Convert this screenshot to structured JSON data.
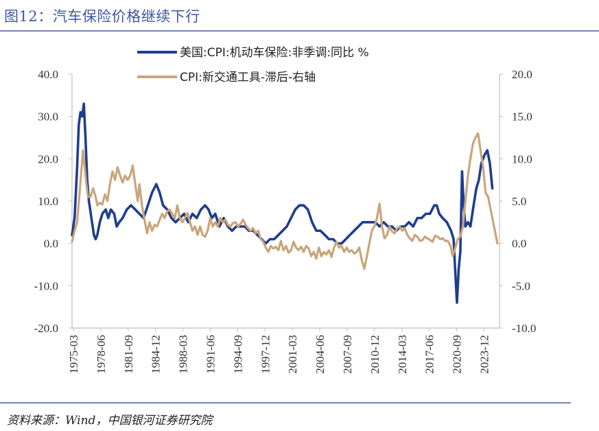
{
  "figure": {
    "title": "图12：汽车保险价格继续下行",
    "source": "资料来源：Wind，中国银河证券研究院"
  },
  "colors": {
    "series1": "#1f3d8f",
    "series2": "#c9a57a",
    "axis": "#bfbfbf"
  },
  "chart_data": {
    "type": "line",
    "title": "",
    "legend_position": "top-center",
    "x_tick_labels": [
      "1975-03",
      "1978-06",
      "1981-09",
      "1984-12",
      "1988-03",
      "1991-06",
      "1994-09",
      "1997-12",
      "2001-03",
      "2004-06",
      "2007-09",
      "2010-12",
      "2014-03",
      "2017-06",
      "2020-09",
      "2023-12"
    ],
    "x_range": [
      1975.0,
      2025.75
    ],
    "y_left": {
      "range": [
        -20,
        40
      ],
      "ticks": [
        "-20.0",
        "-10.0",
        "0.0",
        "10.0",
        "20.0",
        "30.0",
        "40.0"
      ]
    },
    "y_right": {
      "range": [
        -10,
        20
      ],
      "ticks": [
        "-10.0",
        "-5.0",
        "0.0",
        "5.0",
        "10.0",
        "15.0",
        "20.0"
      ]
    },
    "series": [
      {
        "name": "美国:CPI:机动车保险:非季调:同比 %",
        "axis": "left",
        "points": [
          [
            1975.0,
            2
          ],
          [
            1975.3,
            6
          ],
          [
            1975.6,
            18
          ],
          [
            1975.8,
            28
          ],
          [
            1976.0,
            31
          ],
          [
            1976.2,
            30
          ],
          [
            1976.4,
            33
          ],
          [
            1976.6,
            25
          ],
          [
            1976.8,
            15
          ],
          [
            1977.0,
            10
          ],
          [
            1977.3,
            6
          ],
          [
            1977.6,
            2
          ],
          [
            1977.8,
            1
          ],
          [
            1978.0,
            2
          ],
          [
            1978.3,
            5
          ],
          [
            1978.6,
            7
          ],
          [
            1979.0,
            8
          ],
          [
            1979.3,
            6
          ],
          [
            1979.6,
            8
          ],
          [
            1980.0,
            7
          ],
          [
            1980.3,
            4
          ],
          [
            1980.6,
            5
          ],
          [
            1981.0,
            6
          ],
          [
            1981.5,
            8
          ],
          [
            1982.0,
            9
          ],
          [
            1982.5,
            8
          ],
          [
            1983.0,
            7
          ],
          [
            1983.5,
            6
          ],
          [
            1984.0,
            9
          ],
          [
            1984.5,
            12
          ],
          [
            1985.0,
            14
          ],
          [
            1985.4,
            12
          ],
          [
            1985.8,
            9
          ],
          [
            1986.3,
            8
          ],
          [
            1986.8,
            6
          ],
          [
            1987.3,
            5
          ],
          [
            1987.8,
            6
          ],
          [
            1988.3,
            7
          ],
          [
            1988.8,
            5
          ],
          [
            1989.3,
            7
          ],
          [
            1989.8,
            6
          ],
          [
            1990.3,
            8
          ],
          [
            1990.8,
            9
          ],
          [
            1991.2,
            8
          ],
          [
            1991.6,
            6
          ],
          [
            1992.0,
            7
          ],
          [
            1992.5,
            4
          ],
          [
            1993.0,
            6
          ],
          [
            1993.5,
            4
          ],
          [
            1994.0,
            3
          ],
          [
            1994.5,
            4
          ],
          [
            1995.0,
            4
          ],
          [
            1995.5,
            4
          ],
          [
            1996.0,
            3
          ],
          [
            1996.5,
            3
          ],
          [
            1997.0,
            2
          ],
          [
            1997.5,
            1
          ],
          [
            1998.0,
            0
          ],
          [
            1998.5,
            1
          ],
          [
            1999.0,
            1
          ],
          [
            1999.5,
            2
          ],
          [
            2000.0,
            3
          ],
          [
            2000.5,
            4
          ],
          [
            2001.0,
            6
          ],
          [
            2001.5,
            8
          ],
          [
            2002.0,
            9
          ],
          [
            2002.5,
            9
          ],
          [
            2003.0,
            8
          ],
          [
            2003.5,
            5
          ],
          [
            2004.0,
            3
          ],
          [
            2004.5,
            3
          ],
          [
            2005.0,
            2
          ],
          [
            2005.5,
            1
          ],
          [
            2006.0,
            1
          ],
          [
            2006.5,
            0
          ],
          [
            2007.0,
            0
          ],
          [
            2007.5,
            1
          ],
          [
            2008.0,
            2
          ],
          [
            2008.5,
            3
          ],
          [
            2009.0,
            4
          ],
          [
            2009.5,
            5
          ],
          [
            2010.0,
            5
          ],
          [
            2010.5,
            5
          ],
          [
            2011.0,
            5
          ],
          [
            2011.5,
            4
          ],
          [
            2012.0,
            5
          ],
          [
            2012.5,
            4
          ],
          [
            2013.0,
            4
          ],
          [
            2013.5,
            3
          ],
          [
            2014.0,
            4
          ],
          [
            2014.5,
            4
          ],
          [
            2015.0,
            5
          ],
          [
            2015.5,
            4
          ],
          [
            2016.0,
            6
          ],
          [
            2016.5,
            6
          ],
          [
            2017.0,
            7
          ],
          [
            2017.5,
            7
          ],
          [
            2018.0,
            9
          ],
          [
            2018.3,
            9
          ],
          [
            2018.6,
            7
          ],
          [
            2019.0,
            6
          ],
          [
            2019.5,
            5
          ],
          [
            2020.0,
            3
          ],
          [
            2020.3,
            1
          ],
          [
            2020.5,
            -7
          ],
          [
            2020.7,
            -14
          ],
          [
            2020.9,
            -6
          ],
          [
            2021.1,
            -2
          ],
          [
            2021.3,
            17
          ],
          [
            2021.5,
            9
          ],
          [
            2021.7,
            4
          ],
          [
            2022.0,
            5
          ],
          [
            2022.3,
            4
          ],
          [
            2022.6,
            8
          ],
          [
            2023.0,
            13
          ],
          [
            2023.3,
            15
          ],
          [
            2023.6,
            19
          ],
          [
            2024.0,
            21
          ],
          [
            2024.3,
            22
          ],
          [
            2024.6,
            19
          ],
          [
            2024.9,
            13
          ]
        ]
      },
      {
        "name": "CPI:新交通工具-滞后-右轴",
        "axis": "right",
        "points": [
          [
            1975.0,
            0.2
          ],
          [
            1975.3,
            1.5
          ],
          [
            1975.6,
            2.5
          ],
          [
            1975.9,
            6
          ],
          [
            1976.1,
            8.5
          ],
          [
            1976.3,
            11
          ],
          [
            1976.5,
            9
          ],
          [
            1976.7,
            7
          ],
          [
            1976.9,
            5.5
          ],
          [
            1977.2,
            5.5
          ],
          [
            1977.5,
            6.5
          ],
          [
            1977.8,
            5.5
          ],
          [
            1978.0,
            4.5
          ],
          [
            1978.3,
            4.8
          ],
          [
            1978.6,
            4.6
          ],
          [
            1978.9,
            5.8
          ],
          [
            1979.2,
            5
          ],
          [
            1979.5,
            7
          ],
          [
            1979.8,
            8.5
          ],
          [
            1980.1,
            7.5
          ],
          [
            1980.4,
            9
          ],
          [
            1980.7,
            8
          ],
          [
            1981.0,
            7.2
          ],
          [
            1981.3,
            8
          ],
          [
            1981.6,
            7.5
          ],
          [
            1981.9,
            8
          ],
          [
            1982.2,
            9.2
          ],
          [
            1982.5,
            7
          ],
          [
            1982.8,
            5
          ],
          [
            1983.0,
            7
          ],
          [
            1983.3,
            4.5
          ],
          [
            1983.6,
            2.8
          ],
          [
            1983.9,
            1.2
          ],
          [
            1984.2,
            2.5
          ],
          [
            1984.5,
            1.5
          ],
          [
            1984.8,
            2.2
          ],
          [
            1985.1,
            2
          ],
          [
            1985.4,
            2.8
          ],
          [
            1985.7,
            3.5
          ],
          [
            1986.0,
            3
          ],
          [
            1986.3,
            3.8
          ],
          [
            1986.6,
            4
          ],
          [
            1986.9,
            3.5
          ],
          [
            1987.2,
            3
          ],
          [
            1987.5,
            4.5
          ],
          [
            1987.8,
            3
          ],
          [
            1988.1,
            2.5
          ],
          [
            1988.4,
            3
          ],
          [
            1988.7,
            3.6
          ],
          [
            1989.0,
            2.5
          ],
          [
            1989.3,
            1.5
          ],
          [
            1989.6,
            2
          ],
          [
            1989.9,
            1
          ],
          [
            1990.2,
            2
          ],
          [
            1990.5,
            1
          ],
          [
            1990.8,
            0.8
          ],
          [
            1991.1,
            1.5
          ],
          [
            1991.4,
            3
          ],
          [
            1991.7,
            2
          ],
          [
            1992.0,
            2.5
          ],
          [
            1992.3,
            2
          ],
          [
            1992.6,
            3
          ],
          [
            1992.9,
            2.5
          ],
          [
            1993.2,
            2.8
          ],
          [
            1993.5,
            2.2
          ],
          [
            1993.8,
            2
          ],
          [
            1994.1,
            2.4
          ],
          [
            1994.4,
            2.5
          ],
          [
            1994.7,
            2
          ],
          [
            1995.0,
            2.3
          ],
          [
            1995.3,
            2.8
          ],
          [
            1995.6,
            2.2
          ],
          [
            1995.9,
            1.8
          ],
          [
            1996.2,
            1.5
          ],
          [
            1996.5,
            1.8
          ],
          [
            1996.8,
            1.2
          ],
          [
            1997.1,
            1.5
          ],
          [
            1997.4,
            0.5
          ],
          [
            1997.7,
            0.2
          ],
          [
            1998.0,
            -0.5
          ],
          [
            1998.3,
            -1
          ],
          [
            1998.6,
            -0.3
          ],
          [
            1998.9,
            -0.6
          ],
          [
            1999.2,
            -0.4
          ],
          [
            1999.5,
            -0.8
          ],
          [
            1999.8,
            0.3
          ],
          [
            2000.1,
            -0.8
          ],
          [
            2000.4,
            -0.3
          ],
          [
            2000.7,
            -1.1
          ],
          [
            2001.0,
            -0.8
          ],
          [
            2001.3,
            0.2
          ],
          [
            2001.6,
            -0.5
          ],
          [
            2001.9,
            -0.8
          ],
          [
            2002.2,
            -0.4
          ],
          [
            2002.5,
            -1
          ],
          [
            2002.8,
            -0.3
          ],
          [
            2003.1,
            -0.6
          ],
          [
            2003.4,
            -1.5
          ],
          [
            2003.7,
            -1
          ],
          [
            2004.0,
            -1.8
          ],
          [
            2004.3,
            -0.5
          ],
          [
            2004.6,
            -1.5
          ],
          [
            2004.9,
            -1
          ],
          [
            2005.2,
            -1.3
          ],
          [
            2005.5,
            -0.8
          ],
          [
            2005.8,
            -1.6
          ],
          [
            2006.1,
            -0.5
          ],
          [
            2006.4,
            0.2
          ],
          [
            2006.7,
            -0.5
          ],
          [
            2007.0,
            -0.3
          ],
          [
            2007.3,
            -1
          ],
          [
            2007.6,
            -0.5
          ],
          [
            2007.9,
            -1
          ],
          [
            2008.2,
            -0.8
          ],
          [
            2008.5,
            -1.2
          ],
          [
            2008.8,
            -1
          ],
          [
            2009.1,
            -0.5
          ],
          [
            2009.4,
            -2
          ],
          [
            2009.7,
            -3
          ],
          [
            2010.0,
            -1.5
          ],
          [
            2010.3,
            0
          ],
          [
            2010.6,
            1.5
          ],
          [
            2010.9,
            2
          ],
          [
            2011.2,
            3
          ],
          [
            2011.5,
            4.7
          ],
          [
            2011.8,
            2
          ],
          [
            2012.1,
            0.6
          ],
          [
            2012.4,
            1
          ],
          [
            2012.7,
            2
          ],
          [
            2013.0,
            1.4
          ],
          [
            2013.3,
            1.2
          ],
          [
            2013.6,
            1.8
          ],
          [
            2013.9,
            2
          ],
          [
            2014.2,
            1.5
          ],
          [
            2014.5,
            1.8
          ],
          [
            2014.8,
            1
          ],
          [
            2015.1,
            0.6
          ],
          [
            2015.4,
            0.3
          ],
          [
            2015.7,
            1
          ],
          [
            2016.0,
            0.8
          ],
          [
            2016.3,
            0.3
          ],
          [
            2016.6,
            0.4
          ],
          [
            2016.9,
            0.8
          ],
          [
            2017.2,
            0.6
          ],
          [
            2017.5,
            0.4
          ],
          [
            2017.8,
            0.2
          ],
          [
            2018.1,
            0.9
          ],
          [
            2018.4,
            0.8
          ],
          [
            2018.7,
            0.5
          ],
          [
            2019.0,
            0.6
          ],
          [
            2019.3,
            0.3
          ],
          [
            2019.6,
            0.3
          ],
          [
            2019.9,
            -0.2
          ],
          [
            2020.2,
            -1.5
          ],
          [
            2020.5,
            -0.5
          ],
          [
            2020.8,
            0.5
          ],
          [
            2021.1,
            0.8
          ],
          [
            2021.4,
            2
          ],
          [
            2021.7,
            5
          ],
          [
            2022.0,
            8
          ],
          [
            2022.3,
            10
          ],
          [
            2022.6,
            11.8
          ],
          [
            2022.9,
            12.5
          ],
          [
            2023.2,
            13
          ],
          [
            2023.5,
            11
          ],
          [
            2023.8,
            9
          ],
          [
            2024.1,
            6
          ],
          [
            2024.4,
            5.5
          ],
          [
            2024.7,
            4
          ],
          [
            2025.0,
            2.5
          ],
          [
            2025.3,
            1
          ],
          [
            2025.5,
            0
          ]
        ]
      }
    ]
  }
}
